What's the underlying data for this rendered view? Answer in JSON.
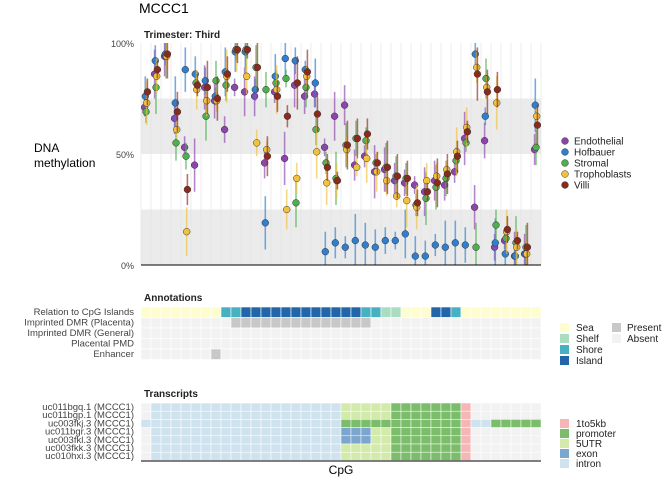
{
  "title": "MCCC1",
  "chart_data": [
    {
      "type": "scatter",
      "facet_title": "Trimester: Third",
      "ylabel": "DNA\nmethylation",
      "ylim": [
        0,
        100
      ],
      "y_ticks": [
        "0%",
        "50%",
        "100%"
      ],
      "shaded_bands": [
        [
          0,
          25
        ],
        [
          50,
          75
        ]
      ],
      "n_cpg": 40,
      "series": [
        {
          "name": "Endothelial",
          "color": "#8e44ad",
          "values": [
            71,
            86,
            94,
            66,
            53,
            45,
            80,
            74,
            61,
            80,
            78,
            76,
            46,
            78,
            48,
            81,
            76,
            77,
            53,
            67,
            72,
            45,
            49,
            42,
            43,
            38,
            37,
            36,
            33,
            38,
            36,
            42,
            57,
            26,
            56,
            8,
            11,
            4,
            5,
            52
          ]
        },
        {
          "name": "Hofbauer",
          "color": "#2f7fd1",
          "values": [
            76,
            92,
            95,
            73,
            88,
            86,
            83,
            76,
            87,
            96,
            96,
            79,
            19,
            85,
            93,
            92,
            88,
            82,
            6,
            10,
            8,
            11,
            9,
            8,
            11,
            11,
            14,
            4,
            4,
            9,
            8,
            10,
            9,
            95,
            67,
            10,
            5,
            4,
            5,
            72
          ]
        },
        {
          "name": "Stromal",
          "color": "#4caf50",
          "values": [
            69,
            80,
            94,
            55,
            49,
            82,
            67,
            83,
            81,
            97,
            97,
            89,
            79,
            82,
            84,
            28,
            80,
            61,
            46,
            39,
            54,
            57,
            56,
            46,
            44,
            40,
            39,
            27,
            30,
            35,
            39,
            47,
            55,
            8,
            84,
            18,
            12,
            10,
            8,
            53
          ]
        },
        {
          "name": "Trophoblasts",
          "color": "#f2c23e",
          "values": [
            73,
            85,
            94,
            61,
            15,
            79,
            74,
            74,
            85,
            97,
            85,
            55,
            52,
            79,
            25,
            39,
            85,
            51,
            37,
            38,
            52,
            44,
            48,
            42,
            38,
            31,
            29,
            26,
            38,
            40,
            43,
            51,
            62,
            89,
            80,
            73,
            15,
            8,
            5,
            67
          ]
        },
        {
          "name": "Villi",
          "color": "#8b2a1c",
          "values": [
            78,
            88,
            95,
            69,
            34,
            81,
            80,
            75,
            86,
            97,
            97,
            89,
            49,
            76,
            67,
            82,
            87,
            68,
            44,
            38,
            54,
            57,
            59,
            46,
            44,
            40,
            39,
            28,
            33,
            37,
            41,
            49,
            60,
            86,
            78,
            79,
            16,
            11,
            8,
            63
          ]
        }
      ]
    },
    {
      "type": "heatmap",
      "facet_title": "Annotations",
      "rows": [
        "Relation to CpG Islands",
        "Imprinted DMR (Placenta)",
        "Imprinted DMR (General)",
        "Placental PMD",
        "Enhancer"
      ],
      "relation_to_cpg_islands": [
        "Sea",
        "Sea",
        "Sea",
        "Sea",
        "Sea",
        "Sea",
        "Sea",
        "Sea",
        "Shore",
        "Shore",
        "Island",
        "Island",
        "Island",
        "Island",
        "Island",
        "Island",
        "Island",
        "Island",
        "Island",
        "Island",
        "Island",
        "Island",
        "Shore",
        "Shore",
        "Shelf",
        "Shelf",
        "Sea",
        "Sea",
        "Sea",
        "Island",
        "Island",
        "Shore",
        "Sea",
        "Sea",
        "Sea",
        "Sea",
        "Sea",
        "Sea",
        "Sea",
        "Sea"
      ],
      "imprinted_dmr_placenta_present_cpgs": [
        9,
        10,
        11,
        12,
        13,
        14,
        15,
        16,
        17,
        18,
        19,
        20,
        21,
        22
      ],
      "imprinted_dmr_general_present_cpgs": [],
      "placental_pmd_present_cpgs": [],
      "enhancer_present_cpgs": [
        7
      ],
      "legend_relation": [
        "Sea",
        "Shelf",
        "Shore",
        "Island"
      ],
      "legend_presence": [
        "Present",
        "Absent"
      ]
    },
    {
      "type": "heatmap",
      "facet_title": "Transcripts",
      "xlabel": "CpG",
      "transcripts": [
        "uc011bgq.1 (MCCC1)",
        "uc011bgp.1 (MCCC1)",
        "uc003fkj.3 (MCCC1)",
        "uc011bgr.3 (MCCC1)",
        "uc003fkl.3 (MCCC1)",
        "uc003fkk.3 (MCCC1)",
        "uc010hxi.3 (MCCC1)"
      ],
      "legend_regions": [
        "1to5kb",
        "promoter",
        "5UTR",
        "exon",
        "intron"
      ]
    }
  ],
  "legend": {
    "cell_types": [
      "Endothelial",
      "Hofbauer",
      "Stromal",
      "Trophoblasts",
      "Villi"
    ],
    "region_colors": {
      "Sea": "#fdfdd0",
      "Shelf": "#a9dcc0",
      "Shore": "#45b1c3",
      "Island": "#2266aa",
      "Present": "#c8c8c8",
      "Absent": "#f2f2f2",
      "1to5kb": "#f7b6b6",
      "promoter": "#7bbd6a",
      "5UTR": "#d2eaaa",
      "exon": "#7da6cf",
      "intron": "#cfe3ef"
    }
  }
}
